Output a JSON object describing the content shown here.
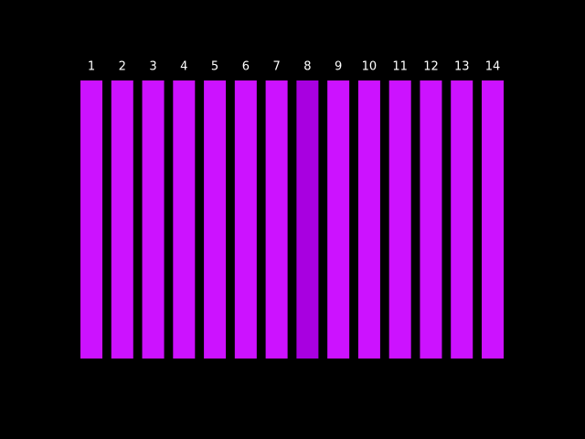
{
  "bars": [
    {
      "label": "1",
      "color": "#cc12ff"
    },
    {
      "label": "2",
      "color": "#cc12ff"
    },
    {
      "label": "3",
      "color": "#cc12ff"
    },
    {
      "label": "4",
      "color": "#cc12ff"
    },
    {
      "label": "5",
      "color": "#cc12ff"
    },
    {
      "label": "6",
      "color": "#cc12ff"
    },
    {
      "label": "7",
      "color": "#cc12ff"
    },
    {
      "label": "8",
      "color": "#a800e0"
    },
    {
      "label": "9",
      "color": "#cc12ff"
    },
    {
      "label": "10",
      "color": "#cc12ff"
    },
    {
      "label": "11",
      "color": "#cc12ff"
    },
    {
      "label": "12",
      "color": "#cc12ff"
    },
    {
      "label": "13",
      "color": "#cc12ff"
    },
    {
      "label": "14",
      "color": "#cc12ff"
    }
  ]
}
